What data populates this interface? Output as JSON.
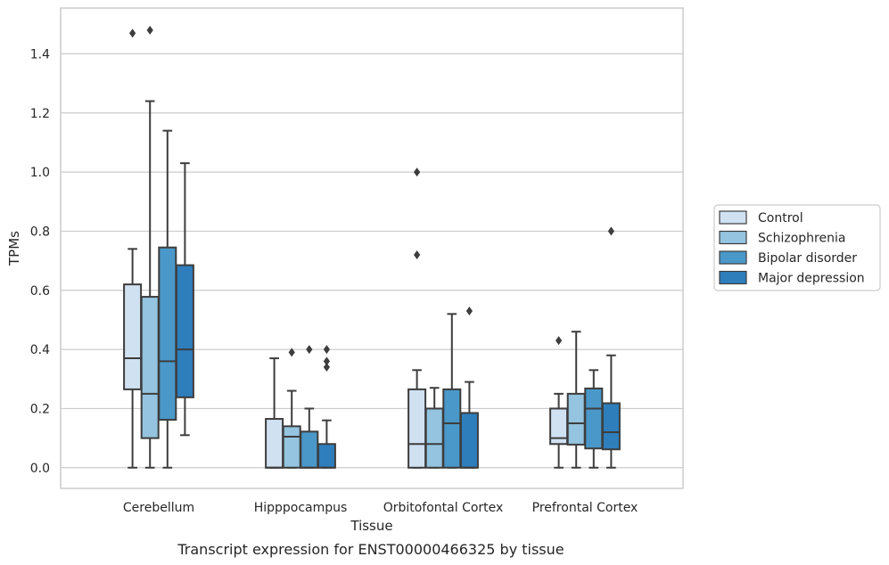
{
  "caption": "Transcript expression for ENST00000466325 by tissue",
  "chart_data": {
    "type": "box",
    "xlabel": "Tissue",
    "ylabel": "TPMs",
    "ylim": [
      -0.07,
      1.555
    ],
    "yticks": [
      "0.0",
      "0.2",
      "0.4",
      "0.6",
      "0.8",
      "1.0",
      "1.2",
      "1.4"
    ],
    "grid": "horizontal",
    "legend_position": "right",
    "categories": [
      "Cerebellum",
      "Hipppocampus",
      "Orbitofontal Cortex",
      "Prefrontal Cortex"
    ],
    "series": [
      {
        "name": "Control",
        "color": "#d0e1f2",
        "boxes": [
          {
            "whislo": 0.0,
            "q1": 0.265,
            "med": 0.37,
            "q3": 0.62,
            "whishi": 0.74,
            "fliers": [
              1.47
            ]
          },
          {
            "whislo": 0.0,
            "q1": 0.0,
            "med": 0.0,
            "q3": 0.165,
            "whishi": 0.37,
            "fliers": []
          },
          {
            "whislo": 0.0,
            "q1": 0.0,
            "med": 0.08,
            "q3": 0.265,
            "whishi": 0.33,
            "fliers": [
              0.72,
              1.0
            ]
          },
          {
            "whislo": 0.0,
            "q1": 0.08,
            "med": 0.1,
            "q3": 0.2,
            "whishi": 0.25,
            "fliers": [
              0.43
            ]
          }
        ]
      },
      {
        "name": "Schizophrenia",
        "color": "#94c4df",
        "boxes": [
          {
            "whislo": 0.0,
            "q1": 0.1,
            "med": 0.25,
            "q3": 0.578,
            "whishi": 1.24,
            "fliers": [
              1.48
            ]
          },
          {
            "whislo": 0.0,
            "q1": 0.0,
            "med": 0.105,
            "q3": 0.14,
            "whishi": 0.26,
            "fliers": [
              0.39
            ]
          },
          {
            "whislo": 0.0,
            "q1": 0.0,
            "med": 0.08,
            "q3": 0.2,
            "whishi": 0.27,
            "fliers": []
          },
          {
            "whislo": 0.0,
            "q1": 0.078,
            "med": 0.15,
            "q3": 0.25,
            "whishi": 0.46,
            "fliers": []
          }
        ]
      },
      {
        "name": "Bipolar disorder",
        "color": "#4a98c9",
        "boxes": [
          {
            "whislo": 0.0,
            "q1": 0.162,
            "med": 0.36,
            "q3": 0.745,
            "whishi": 1.14,
            "fliers": []
          },
          {
            "whislo": 0.0,
            "q1": 0.0,
            "med": 0.0,
            "q3": 0.122,
            "whishi": 0.2,
            "fliers": [
              0.4
            ]
          },
          {
            "whislo": 0.0,
            "q1": 0.0,
            "med": 0.15,
            "q3": 0.265,
            "whishi": 0.52,
            "fliers": []
          },
          {
            "whislo": 0.0,
            "q1": 0.065,
            "med": 0.2,
            "q3": 0.268,
            "whishi": 0.33,
            "fliers": []
          }
        ]
      },
      {
        "name": "Major depression",
        "color": "#2e7ebc",
        "boxes": [
          {
            "whislo": 0.11,
            "q1": 0.238,
            "med": 0.4,
            "q3": 0.685,
            "whishi": 1.03,
            "fliers": []
          },
          {
            "whislo": 0.0,
            "q1": 0.0,
            "med": 0.0,
            "q3": 0.08,
            "whishi": 0.16,
            "fliers": [
              0.34,
              0.36,
              0.4
            ]
          },
          {
            "whislo": 0.0,
            "q1": 0.0,
            "med": 0.0,
            "q3": 0.185,
            "whishi": 0.29,
            "fliers": [
              0.53
            ]
          },
          {
            "whislo": 0.0,
            "q1": 0.062,
            "med": 0.12,
            "q3": 0.218,
            "whishi": 0.38,
            "fliers": [
              0.8
            ]
          }
        ]
      }
    ]
  }
}
